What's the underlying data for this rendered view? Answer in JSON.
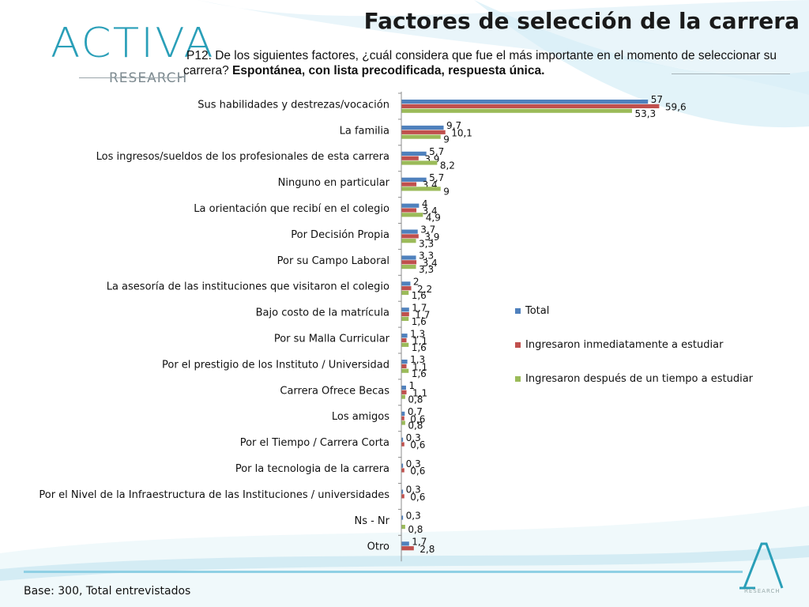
{
  "brand": {
    "logo_word": "ACTIVA",
    "logo_sub": "RESEARCH",
    "footer_text": "RESEARCH"
  },
  "header": {
    "title": "Factores de selección de la carrera",
    "question_text": "P12. De los siguientes factores, ¿cuál considera que fue el más importante en el momento de seleccionar su carrera?",
    "question_bold": "Espontánea, con lista precodificada, respuesta única."
  },
  "footer": {
    "base_note": "Base: 300, Total entrevistados"
  },
  "colors": {
    "total": "#4f81bd",
    "inmediato": "#c0504d",
    "despues": "#9bbb59",
    "accent": "#2a9fb8"
  },
  "chart_data": {
    "type": "bar",
    "orientation": "horizontal",
    "categories": [
      "Sus habilidades y destrezas/vocación",
      "La familia",
      "Los ingresos/sueldos de los profesionales de esta carrera",
      "Ninguno en particular",
      "La orientación que recibí en el colegio",
      "Por Decisión Propia",
      "Por su Campo Laboral",
      "La asesoría de las instituciones que visitaron el colegio",
      "Bajo costo de la matrícula",
      "Por su Malla Curricular",
      "Por el prestigio de los Instituto / Universidad",
      "Carrera Ofrece Becas",
      "Los amigos",
      "Por el Tiempo / Carrera Corta",
      "Por la tecnologia de la carrera",
      "Por el Nivel de la Infraestructura de las Instituciones / universidades",
      "Ns - Nr",
      "Otro"
    ],
    "series": [
      {
        "name": "Total",
        "values": [
          57,
          9.7,
          5.7,
          5.7,
          4,
          3.7,
          3.3,
          2,
          1.7,
          1.3,
          1.3,
          1,
          0.7,
          0.3,
          0.3,
          0.3,
          0.3,
          1.7
        ],
        "labels": [
          "57",
          "9,7",
          "5,7",
          "5,7",
          "4",
          "3,7",
          "3,3",
          "2",
          "1,7",
          "1,3",
          "1,3",
          "1",
          "0,7",
          "0,3",
          "0,3",
          "0,3",
          "0,3",
          "1,7"
        ]
      },
      {
        "name": "Ingresaron inmediatamente a estudiar",
        "values": [
          59.6,
          10.1,
          3.9,
          3.4,
          3.4,
          3.9,
          3.4,
          2.2,
          1.7,
          1.1,
          1.1,
          1.1,
          0.6,
          0.6,
          0.6,
          0.6,
          null,
          2.8
        ],
        "labels": [
          "59,6",
          "10,1",
          "3,9",
          "3,4",
          "3,4",
          "3,9",
          "3,4",
          "2,2",
          "1,7",
          "1,1",
          "1,1",
          "1,1",
          "0,6",
          "0,6",
          "0,6",
          "0,6",
          "",
          "2,8"
        ]
      },
      {
        "name": "Ingresaron después de un tiempo a estudiar",
        "values": [
          53.3,
          9,
          8.2,
          9,
          4.9,
          3.3,
          3.3,
          1.6,
          1.6,
          1.6,
          1.6,
          0.8,
          0.8,
          null,
          null,
          null,
          0.8,
          null
        ],
        "labels": [
          "53,3",
          "9",
          "8,2",
          "9",
          "4,9",
          "3,3",
          "3,3",
          "1,6",
          "1,6",
          "1,6",
          "1,6",
          "0,8",
          "0,8",
          "",
          "",
          "",
          "0,8",
          ""
        ]
      }
    ],
    "xlim": [
      0,
      60
    ],
    "grid": false,
    "legend_position": "right",
    "show_x_axis_ticks": false
  }
}
